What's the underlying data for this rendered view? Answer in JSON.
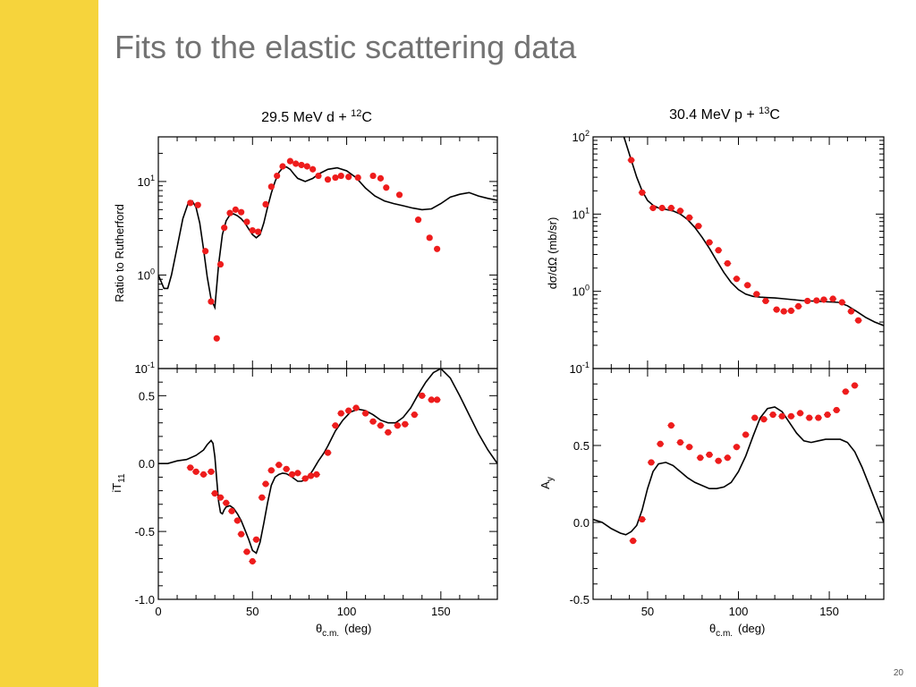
{
  "slide": {
    "title": "Fits to the elastic scattering data",
    "page_number": "20"
  },
  "colors": {
    "sidebar": "#f6d43c",
    "title": "#727272",
    "data_points": "#ee1c1c",
    "fit_line": "#000000"
  },
  "chart_data": [
    {
      "id": "d12C_sigma",
      "type": "scatter",
      "title": "29.5 MeV d + 12C",
      "title_base": "29.5 MeV d + ",
      "title_sup": "12",
      "title_tail": "C",
      "xlabel": "",
      "ylabel": "Ratio to Rutherford",
      "xlim": [
        0,
        180
      ],
      "ylim": [
        0.1,
        30
      ],
      "yscale": "log",
      "ytick_labels": [
        {
          "v": 0.1,
          "b": "10",
          "e": "-1"
        },
        {
          "v": 1,
          "b": "10",
          "e": "0"
        },
        {
          "v": 10,
          "b": "10",
          "e": "1"
        }
      ],
      "series": [
        {
          "kind": "points",
          "errorbars": false,
          "x": [
            17,
            21,
            25,
            28,
            31,
            33,
            35,
            38,
            41,
            44,
            47,
            50,
            53,
            57,
            60,
            63,
            66,
            70,
            73,
            76,
            79,
            82,
            85,
            90,
            94,
            97,
            101,
            106,
            114,
            118,
            121,
            128,
            138,
            144,
            148
          ],
          "y": [
            5.9,
            5.6,
            1.8,
            0.52,
            0.21,
            1.3,
            3.2,
            4.6,
            5.0,
            4.7,
            3.7,
            3.0,
            2.9,
            5.7,
            8.8,
            11.5,
            14.5,
            16.5,
            15.5,
            15.0,
            14.5,
            13.5,
            11.5,
            10.5,
            11.0,
            11.5,
            11.2,
            11.0,
            11.5,
            10.8,
            8.6,
            7.2,
            3.9,
            2.5,
            1.9
          ]
        },
        {
          "kind": "line",
          "x": [
            0,
            3,
            5,
            7,
            10,
            13,
            16,
            18,
            20,
            22,
            24,
            26,
            28,
            30,
            32,
            34,
            36,
            38,
            40,
            42,
            44,
            46,
            48,
            50,
            52,
            54,
            56,
            58,
            60,
            62,
            64,
            66,
            68,
            70,
            72,
            74,
            78,
            82,
            85,
            90,
            95,
            100,
            105,
            110,
            115,
            120,
            125,
            130,
            135,
            140,
            145,
            150,
            155,
            160,
            165,
            170,
            175,
            180
          ],
          "y": [
            1.0,
            0.72,
            0.72,
            1.0,
            2.0,
            4.0,
            6.0,
            6.2,
            5.3,
            3.6,
            1.9,
            0.95,
            0.55,
            0.45,
            1.3,
            2.7,
            3.8,
            4.4,
            4.5,
            4.3,
            4.0,
            3.6,
            3.1,
            2.7,
            2.5,
            2.7,
            3.6,
            5.3,
            7.5,
            10.0,
            12.5,
            14.0,
            14.3,
            13.5,
            12.0,
            10.8,
            10.0,
            10.8,
            12.0,
            13.5,
            14.0,
            13.0,
            11.0,
            8.5,
            7.0,
            6.2,
            5.8,
            5.5,
            5.2,
            5.0,
            5.1,
            5.8,
            6.8,
            7.3,
            7.6,
            7.0,
            6.6,
            6.3
          ]
        }
      ]
    },
    {
      "id": "d12C_iT11",
      "type": "scatter",
      "title": "",
      "xlabel": "θc.m. (deg)",
      "ylabel": "iT11",
      "xlim": [
        0,
        180
      ],
      "ylim": [
        -1.0,
        0.7
      ],
      "yscale": "linear",
      "yticks": [
        -1.0,
        -0.5,
        0.0,
        0.5
      ],
      "ytick_labels": [
        "-1.0",
        "-0.5",
        "0.0",
        "0.5"
      ],
      "xticks": [
        0,
        50,
        100,
        150
      ],
      "xtick_labels": [
        "0",
        "50",
        "100",
        "150"
      ],
      "series": [
        {
          "kind": "points",
          "errorbars": true,
          "x": [
            17,
            20,
            24,
            28,
            30,
            33,
            36,
            39,
            42,
            44,
            47,
            50,
            52,
            55,
            57,
            60,
            64,
            68,
            71,
            74,
            78,
            81,
            84,
            90,
            94,
            97,
            101,
            105,
            110,
            114,
            118,
            122,
            127,
            131,
            136,
            140,
            145,
            148
          ],
          "y": [
            -0.03,
            -0.06,
            -0.08,
            -0.06,
            -0.22,
            -0.25,
            -0.29,
            -0.35,
            -0.42,
            -0.52,
            -0.65,
            -0.72,
            -0.56,
            -0.25,
            -0.15,
            -0.05,
            -0.01,
            -0.04,
            -0.08,
            -0.07,
            -0.11,
            -0.09,
            -0.08,
            0.08,
            0.28,
            0.37,
            0.39,
            0.41,
            0.37,
            0.31,
            0.28,
            0.23,
            0.28,
            0.29,
            0.36,
            0.5,
            0.47,
            0.47
          ]
        },
        {
          "kind": "line",
          "x": [
            0,
            5,
            10,
            15,
            20,
            24,
            26,
            28,
            29,
            30,
            31,
            32,
            33,
            34,
            35,
            36,
            38,
            40,
            42,
            44,
            46,
            48,
            50,
            52,
            54,
            56,
            58,
            60,
            62,
            64,
            66,
            68,
            70,
            72,
            74,
            76,
            78,
            80,
            82,
            85,
            88,
            90,
            94,
            98,
            102,
            106,
            110,
            114,
            118,
            122,
            126,
            130,
            134,
            138,
            142,
            146,
            150,
            155,
            160,
            165,
            170,
            175,
            180
          ],
          "y": [
            0.0,
            0.0,
            0.02,
            0.03,
            0.06,
            0.1,
            0.14,
            0.17,
            0.15,
            0.05,
            -0.12,
            -0.28,
            -0.36,
            -0.37,
            -0.34,
            -0.32,
            -0.31,
            -0.33,
            -0.37,
            -0.42,
            -0.49,
            -0.56,
            -0.64,
            -0.66,
            -0.58,
            -0.44,
            -0.29,
            -0.16,
            -0.1,
            -0.08,
            -0.07,
            -0.075,
            -0.09,
            -0.11,
            -0.13,
            -0.13,
            -0.12,
            -0.09,
            -0.05,
            0.02,
            0.08,
            0.13,
            0.24,
            0.32,
            0.38,
            0.4,
            0.39,
            0.36,
            0.32,
            0.3,
            0.3,
            0.34,
            0.41,
            0.51,
            0.6,
            0.67,
            0.7,
            0.63,
            0.5,
            0.36,
            0.22,
            0.1,
            0.0
          ]
        }
      ]
    },
    {
      "id": "p13C_sigma",
      "type": "scatter",
      "title": "30.4 MeV p + 13C",
      "title_base": "30.4 MeV p + ",
      "title_sup": "13",
      "title_tail": "C",
      "xlabel": "",
      "ylabel": "dσ/dΩ (mb/sr)",
      "xlim": [
        20,
        180
      ],
      "ylim": [
        0.1,
        100
      ],
      "yscale": "log",
      "ytick_labels": [
        {
          "v": 0.1,
          "b": "10",
          "e": "-1"
        },
        {
          "v": 1,
          "b": "10",
          "e": "0"
        },
        {
          "v": 10,
          "b": "10",
          "e": "1"
        },
        {
          "v": 100,
          "b": "10",
          "e": "2"
        }
      ],
      "series": [
        {
          "kind": "points",
          "errorbars": true,
          "x": [
            41,
            47,
            53,
            58,
            63,
            68,
            73,
            78,
            84,
            89,
            94,
            99,
            105,
            110,
            115,
            121,
            125,
            129,
            133,
            138,
            143,
            147,
            152,
            157,
            162,
            166
          ],
          "y": [
            50,
            19,
            12,
            12,
            12,
            11,
            9.0,
            7.0,
            4.3,
            3.4,
            2.3,
            1.45,
            1.2,
            0.92,
            0.75,
            0.58,
            0.55,
            0.56,
            0.64,
            0.75,
            0.76,
            0.78,
            0.8,
            0.72,
            0.55,
            0.42
          ]
        },
        {
          "kind": "line",
          "x": [
            37,
            41,
            44,
            47,
            50,
            53,
            56,
            60,
            64,
            68,
            72,
            76,
            80,
            84,
            88,
            92,
            96,
            100,
            104,
            108,
            112,
            116,
            120,
            125,
            130,
            135,
            140,
            145,
            150,
            155,
            160,
            165,
            170,
            175,
            180
          ],
          "y": [
            100,
            50,
            30,
            20,
            15,
            13,
            12,
            11.5,
            11,
            10,
            8.5,
            6.7,
            5.0,
            3.6,
            2.5,
            1.75,
            1.3,
            1.05,
            0.92,
            0.86,
            0.84,
            0.83,
            0.82,
            0.8,
            0.78,
            0.76,
            0.75,
            0.74,
            0.73,
            0.72,
            0.65,
            0.55,
            0.46,
            0.4,
            0.36
          ]
        }
      ]
    },
    {
      "id": "p13C_Ay",
      "type": "scatter",
      "title": "",
      "xlabel": "θc.m. (deg)",
      "ylabel": "Ay",
      "xlim": [
        20,
        180
      ],
      "ylim": [
        -0.5,
        1.0
      ],
      "yscale": "linear",
      "yticks": [
        -0.5,
        0.0,
        0.5
      ],
      "ytick_labels": [
        "-0.5",
        "0.0",
        "0.5"
      ],
      "xticks": [
        50,
        100,
        150
      ],
      "xtick_labels": [
        "50",
        "100",
        "150"
      ],
      "series": [
        {
          "kind": "points",
          "errorbars": true,
          "x": [
            42,
            47,
            52,
            57,
            63,
            68,
            73,
            79,
            84,
            89,
            94,
            99,
            104,
            109,
            114,
            119,
            124,
            129,
            134,
            139,
            144,
            149,
            154,
            159,
            164
          ],
          "y": [
            -0.12,
            0.02,
            0.39,
            0.51,
            0.63,
            0.52,
            0.49,
            0.42,
            0.44,
            0.4,
            0.42,
            0.49,
            0.57,
            0.68,
            0.67,
            0.7,
            0.69,
            0.69,
            0.71,
            0.68,
            0.68,
            0.7,
            0.73,
            0.85,
            0.89
          ]
        },
        {
          "kind": "line",
          "x": [
            20,
            25,
            30,
            35,
            38,
            41,
            44,
            47,
            50,
            53,
            56,
            60,
            64,
            68,
            72,
            76,
            80,
            84,
            88,
            92,
            96,
            100,
            104,
            108,
            112,
            116,
            120,
            124,
            128,
            132,
            136,
            140,
            144,
            148,
            152,
            156,
            160,
            164,
            168,
            172,
            176,
            180
          ],
          "y": [
            0.02,
            0.0,
            -0.04,
            -0.07,
            -0.08,
            -0.06,
            -0.02,
            0.08,
            0.22,
            0.33,
            0.38,
            0.39,
            0.37,
            0.33,
            0.29,
            0.26,
            0.24,
            0.22,
            0.22,
            0.23,
            0.26,
            0.33,
            0.43,
            0.56,
            0.68,
            0.74,
            0.75,
            0.72,
            0.65,
            0.58,
            0.53,
            0.52,
            0.53,
            0.54,
            0.54,
            0.54,
            0.52,
            0.46,
            0.36,
            0.24,
            0.12,
            0.0
          ]
        }
      ]
    }
  ]
}
